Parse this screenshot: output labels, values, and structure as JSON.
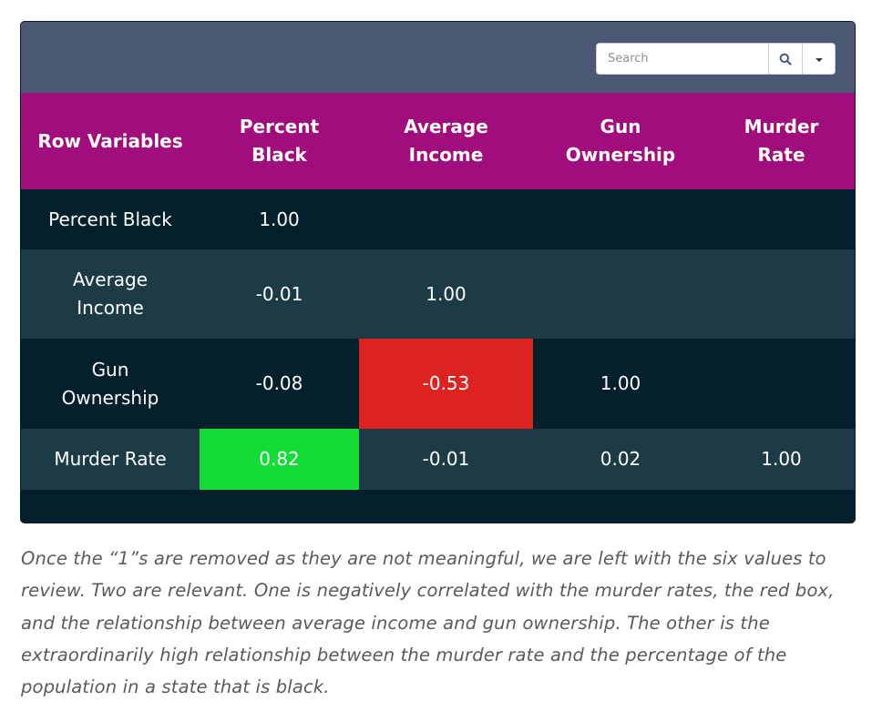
{
  "search": {
    "placeholder": "Search",
    "search_button_icon": "search-icon",
    "dropdown_icon": "caret-down-icon"
  },
  "table": {
    "headers": [
      "Row Variables",
      "Percent Black",
      "Average Income",
      "Gun Ownership",
      "Murder Rate"
    ],
    "header_lines": [
      [
        "Row Variables"
      ],
      [
        "Percent",
        "Black"
      ],
      [
        "Average",
        "Income"
      ],
      [
        "Gun",
        "Ownership"
      ],
      [
        "Murder",
        "Rate"
      ]
    ],
    "rows": [
      {
        "label_lines": [
          "Percent Black"
        ],
        "values": [
          "1.00",
          "",
          "",
          ""
        ]
      },
      {
        "label_lines": [
          "Average",
          "Income"
        ],
        "values": [
          "-0.01",
          "1.00",
          "",
          ""
        ]
      },
      {
        "label_lines": [
          "Gun",
          "Ownership"
        ],
        "values": [
          "-0.08",
          "-0.53",
          "1.00",
          ""
        ]
      },
      {
        "label_lines": [
          "Murder Rate"
        ],
        "values": [
          "0.82",
          "-0.01",
          "0.02",
          "1.00"
        ]
      }
    ]
  },
  "colors": {
    "toolbar": "#4b5874",
    "header": "#a10d7c",
    "row_dark": "#04202c",
    "row_light": "#1c3b47",
    "highlight_negative": "#dc2320",
    "highlight_positive": "#14dc37"
  },
  "caption": "Once the “1”s are removed as they are not meaningful, we are left with the six values to review. Two are relevant. One is negatively correlated with the murder rates, the red box, and the relationship between average income and gun ownership. The other is the extraordinarily high relationship between the murder rate and the percentage of the population in a state that is black."
}
